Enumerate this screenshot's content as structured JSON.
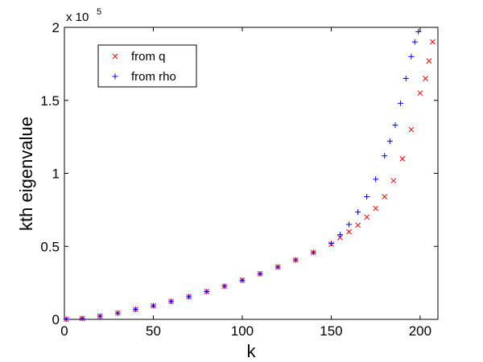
{
  "chart_data": {
    "type": "scatter",
    "title": "",
    "xlabel": "k",
    "ylabel": "kth eigenvalue",
    "xlim": [
      0,
      210
    ],
    "ylim": [
      0,
      200000
    ],
    "xticks": [
      "0",
      "50",
      "100",
      "150",
      "200"
    ],
    "yticks": [
      "0",
      "0.5",
      "1",
      "1.5",
      "2"
    ],
    "y_exponent": {
      "base": "x 10",
      "power": "5"
    },
    "grid": false,
    "legend_position": "top-left",
    "series": [
      {
        "name": "from q",
        "marker": "x",
        "color": "#ff0000",
        "x": [
          1,
          10,
          20,
          30,
          40,
          50,
          60,
          70,
          80,
          90,
          100,
          110,
          120,
          130,
          140,
          150,
          155,
          160,
          165,
          170,
          175,
          180,
          185,
          190,
          195,
          200,
          203,
          205,
          207
        ],
        "y": [
          100,
          600,
          2200,
          4300,
          6800,
          9300,
          12300,
          15500,
          19000,
          22700,
          26800,
          31200,
          35800,
          40700,
          45800,
          51500,
          56000,
          60000,
          64500,
          70000,
          76000,
          84000,
          95000,
          110000,
          130000,
          155000,
          165000,
          177000,
          190000
        ]
      },
      {
        "name": "from rho",
        "marker": "+",
        "color": "#0000ff",
        "x": [
          1,
          10,
          20,
          30,
          40,
          50,
          60,
          70,
          80,
          90,
          100,
          110,
          120,
          130,
          140,
          150,
          155,
          160,
          165,
          170,
          175,
          180,
          183,
          186,
          189,
          192,
          195,
          197,
          199
        ],
        "y": [
          100,
          600,
          2200,
          4300,
          6800,
          9300,
          12300,
          15500,
          19000,
          22700,
          26800,
          31200,
          35800,
          40700,
          45800,
          52000,
          58000,
          65000,
          73500,
          84000,
          96000,
          112000,
          122000,
          133000,
          148000,
          165000,
          180000,
          190000,
          197000
        ]
      }
    ]
  }
}
